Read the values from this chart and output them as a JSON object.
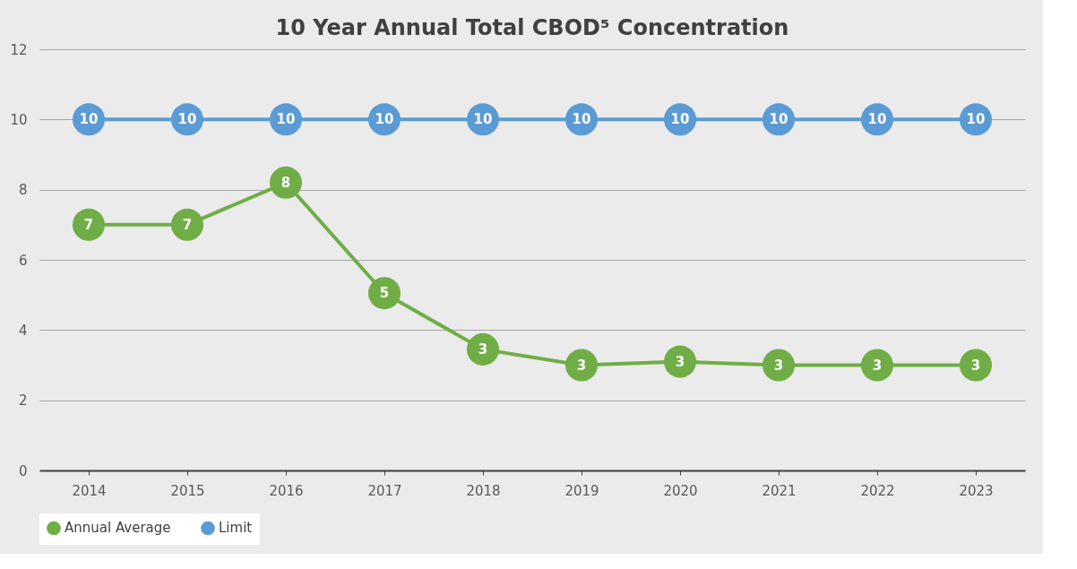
{
  "chart_data": {
    "type": "line",
    "title": "10 Year Annual Total CBOD⁵ Concentration",
    "categories": [
      "2014",
      "2015",
      "2016",
      "2017",
      "2018",
      "2019",
      "2020",
      "2021",
      "2022",
      "2023"
    ],
    "series": [
      {
        "name": "Annual Average",
        "color": "#70ad47",
        "values": [
          7,
          7,
          8.2,
          5.05,
          3.45,
          3.0,
          3.1,
          3.0,
          3.0,
          3.0
        ],
        "value_labels": [
          "7",
          "7",
          "8",
          "5",
          "3",
          "3",
          "3",
          "3",
          "3",
          "3"
        ]
      },
      {
        "name": "Limit",
        "color": "#5b9bd5",
        "values": [
          10,
          10,
          10,
          10,
          10,
          10,
          10,
          10,
          10,
          10
        ],
        "value_labels": [
          "10",
          "10",
          "10",
          "10",
          "10",
          "10",
          "10",
          "10",
          "10",
          "10"
        ]
      }
    ],
    "ylim": [
      0,
      12
    ],
    "yticks": [
      0,
      2,
      4,
      6,
      8,
      10,
      12
    ],
    "grid": "y",
    "legend": "bottom",
    "marker": "circle",
    "line_style": "solid"
  }
}
